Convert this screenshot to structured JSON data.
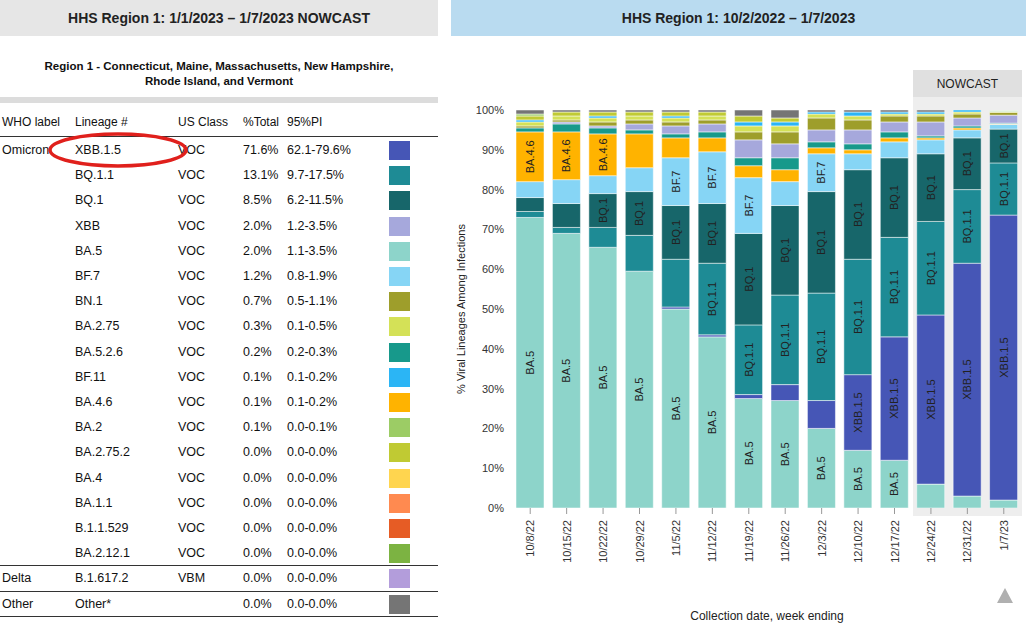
{
  "left_header": "HHS Region 1: 1/1/2023 – 1/7/2023 NOWCAST",
  "right_header": "HHS Region 1: 10/2/2022 – 1/7/2023",
  "subtitle_lines": [
    "Region 1 - Connecticut, Maine, Massachusetts, New Hampshire,",
    "Rhode Island, and Vermont"
  ],
  "table": {
    "columns": [
      "WHO label",
      "Lineage #",
      "US Class",
      "%Total",
      "95%PI"
    ],
    "rows": [
      [
        "Omicron",
        "XBB.1.5",
        "VOC",
        "71.6%",
        "62.1-79.6%",
        "#4656b6"
      ],
      [
        null,
        "BQ.1.1",
        "VOC",
        "13.1%",
        "9.7-17.5%",
        "#1e8b95"
      ],
      [
        null,
        "BQ.1",
        "VOC",
        "8.5%",
        "6.2-11.5%",
        "#17666a"
      ],
      [
        null,
        "XBB",
        "VOC",
        "2.0%",
        "1.2-3.5%",
        "#a6a8dc"
      ],
      [
        null,
        "BA.5",
        "VOC",
        "2.0%",
        "1.1-3.5%",
        "#8dd4ca"
      ],
      [
        null,
        "BF.7",
        "VOC",
        "1.2%",
        "0.8-1.9%",
        "#86d5f5"
      ],
      [
        null,
        "BN.1",
        "VOC",
        "0.7%",
        "0.5-1.1%",
        "#9e9e2b"
      ],
      [
        null,
        "BA.2.75",
        "VOC",
        "0.3%",
        "0.1-0.5%",
        "#d4e157"
      ],
      [
        null,
        "BA.5.2.6",
        "VOC",
        "0.2%",
        "0.2-0.3%",
        "#17998b"
      ],
      [
        null,
        "BF.11",
        "VOC",
        "0.1%",
        "0.1-0.2%",
        "#2bb5f5"
      ],
      [
        null,
        "BA.4.6",
        "VOC",
        "0.1%",
        "0.1-0.2%",
        "#ffb300"
      ],
      [
        null,
        "BA.2",
        "VOC",
        "0.1%",
        "0.0-0.1%",
        "#9ccc65"
      ],
      [
        null,
        "BA.2.75.2",
        "VOC",
        "0.0%",
        "0.0-0.0%",
        "#c0ca33"
      ],
      [
        null,
        "BA.4",
        "VOC",
        "0.0%",
        "0.0-0.0%",
        "#ffd54f"
      ],
      [
        null,
        "BA.1.1",
        "VOC",
        "0.0%",
        "0.0-0.0%",
        "#ff8a50"
      ],
      [
        null,
        "B.1.1.529",
        "VOC",
        "0.0%",
        "0.0-0.0%",
        "#e65c25"
      ],
      [
        null,
        "BA.2.12.1",
        "VOC",
        "0.0%",
        "0.0-0.0%",
        "#7cb342"
      ],
      [
        "Delta",
        "B.1.617.2",
        "VBM",
        "0.0%",
        "0.0-0.0%",
        "#b39ddb"
      ],
      [
        "Other",
        "Other*",
        null,
        "0.0%",
        "0.0-0.0%",
        "#757575"
      ]
    ]
  },
  "chart_data": {
    "type": "bar",
    "stacked": true,
    "grid": false,
    "ylabel": "% Viral Lineages Among Infections",
    "xlabel": "Collection date, week ending",
    "categories": [
      "10/8/22",
      "10/15/22",
      "10/22/22",
      "10/29/22",
      "11/5/22",
      "11/12/22",
      "11/19/22",
      "11/26/22",
      "12/3/22",
      "12/10/22",
      "12/17/22",
      "12/24/22",
      "12/31/22",
      "1/7/23"
    ],
    "ylim": [
      0,
      100
    ],
    "yticks": [
      {
        "value": 0,
        "label": "0%"
      },
      {
        "value": 10,
        "label": "10%"
      },
      {
        "value": 20,
        "label": "20%"
      },
      {
        "value": 30,
        "label": "30%"
      },
      {
        "value": 40,
        "label": "40%"
      },
      {
        "value": 50,
        "label": "50%"
      },
      {
        "value": 60,
        "label": "60%"
      },
      {
        "value": 70,
        "label": "70%"
      },
      {
        "value": 80,
        "label": "80%"
      },
      {
        "value": 90,
        "label": "90%"
      },
      {
        "value": 100,
        "label": "100%"
      }
    ],
    "series": [
      {
        "name": "BA.5",
        "color": "#8dd4ca",
        "values": [
          73,
          69,
          65.5,
          59.5,
          50,
          43,
          27.5,
          27,
          20,
          14.5,
          12,
          6,
          3,
          2
        ]
      },
      {
        "name": "XBB.1.5",
        "color": "#4656b6",
        "values": [
          0,
          0,
          0,
          0,
          0.5,
          0.5,
          1,
          4,
          7,
          19,
          31,
          42.5,
          58.5,
          71.6
        ]
      },
      {
        "name": "BQ.1.1",
        "color": "#1e8b95",
        "values": [
          1.5,
          1.5,
          5,
          9,
          12,
          18,
          17.5,
          22.5,
          27,
          29,
          25,
          23.5,
          18.5,
          13.1
        ]
      },
      {
        "name": "BQ.1",
        "color": "#17666a",
        "values": [
          3.5,
          6,
          8.5,
          11,
          13.5,
          15,
          23,
          22.5,
          25.5,
          22.5,
          20,
          17,
          13,
          8.5
        ]
      },
      {
        "name": "BF.7",
        "color": "#86d5f5",
        "values": [
          4,
          6,
          4.5,
          6,
          12,
          13,
          14,
          6,
          9.5,
          4,
          4,
          3.5,
          2,
          1.2
        ]
      },
      {
        "name": "BA.4.6",
        "color": "#ffb300",
        "values": [
          12.5,
          12,
          10.5,
          8.5,
          5,
          3.5,
          3,
          3,
          1.5,
          1,
          1,
          0.5,
          0.5,
          0.1
        ]
      },
      {
        "name": "BA.5.2.6",
        "color": "#17998b",
        "values": [
          1,
          2,
          1.5,
          1,
          1,
          1.5,
          2,
          3,
          1.5,
          1.5,
          1.5,
          0.5,
          0.5,
          0.2
        ]
      },
      {
        "name": "XBB",
        "color": "#a6a8dc",
        "values": [
          0,
          0.5,
          0.5,
          1.5,
          2,
          2,
          4.5,
          3.5,
          3,
          3.5,
          2.5,
          3.5,
          2,
          2
        ]
      },
      {
        "name": "BN.1",
        "color": "#9e9e2b",
        "values": [
          0.5,
          0.5,
          1,
          1,
          1,
          1,
          2,
          3,
          3,
          2.5,
          1.5,
          1.5,
          1,
          0.7
        ]
      },
      {
        "name": "BA.2.75",
        "color": "#d4e157",
        "values": [
          1,
          1,
          1,
          1,
          1,
          1,
          1.5,
          1.5,
          1,
          1,
          0.5,
          0.5,
          0.5,
          0.3
        ]
      },
      {
        "name": "BF.11",
        "color": "#2bb5f5",
        "values": [
          0.5,
          0,
          0.5,
          0,
          0.5,
          0,
          1,
          1,
          0.5,
          1,
          0.5,
          0.5,
          0.5,
          0.1
        ]
      },
      {
        "name": "BA.2.75.2",
        "color": "#c0ca33",
        "values": [
          1,
          1,
          1,
          1,
          1,
          1,
          1.5,
          1,
          0,
          0,
          0,
          0,
          0,
          0
        ]
      },
      {
        "name": "BA.2",
        "color": "#9ccc65",
        "values": [
          0.5,
          0,
          0,
          0,
          0,
          0,
          0,
          0,
          0,
          0,
          0,
          0,
          0,
          0.1
        ]
      },
      {
        "name": "Other",
        "color": "#757575",
        "values": [
          1,
          0.5,
          0.5,
          0.5,
          0.5,
          0.5,
          1.5,
          2,
          0.5,
          0.5,
          0.5,
          0.5,
          0,
          0
        ]
      }
    ],
    "annotations": [
      {
        "category": "10/8/22",
        "series": "BA.5",
        "text": "BA.5"
      },
      {
        "category": "10/8/22",
        "series": "BA.4.6",
        "text": "BA.4.6"
      },
      {
        "category": "10/15/22",
        "series": "BA.5",
        "text": "BA.5"
      },
      {
        "category": "10/15/22",
        "series": "BA.4.6",
        "text": "BA.4.6"
      },
      {
        "category": "10/22/22",
        "series": "BA.5",
        "text": "BA.5"
      },
      {
        "category": "10/22/22",
        "series": "BQ.1",
        "text": "BQ.1"
      },
      {
        "category": "10/22/22",
        "series": "BA.4.6",
        "text": "BA.4.6"
      },
      {
        "category": "10/29/22",
        "series": "BA.5",
        "text": "BA.5"
      },
      {
        "category": "10/29/22",
        "series": "BQ.1",
        "text": "BQ.1"
      },
      {
        "category": "11/5/22",
        "series": "BA.5",
        "text": "BA.5"
      },
      {
        "category": "11/5/22",
        "series": "BQ.1",
        "text": "BQ.1"
      },
      {
        "category": "11/5/22",
        "series": "BF.7",
        "text": "BF.7"
      },
      {
        "category": "11/12/22",
        "series": "BA.5",
        "text": "BA.5"
      },
      {
        "category": "11/12/22",
        "series": "BQ.1.1",
        "text": "BQ.1.1"
      },
      {
        "category": "11/12/22",
        "series": "BQ.1",
        "text": "BQ.1"
      },
      {
        "category": "11/12/22",
        "series": "BF.7",
        "text": "BF.7"
      },
      {
        "category": "11/19/22",
        "series": "BA.5",
        "text": "BA.5"
      },
      {
        "category": "11/19/22",
        "series": "BQ.1.1",
        "text": "BQ.1.1"
      },
      {
        "category": "11/19/22",
        "series": "BQ.1",
        "text": "BQ.1"
      },
      {
        "category": "11/19/22",
        "series": "BF.7",
        "text": "BF.7"
      },
      {
        "category": "11/26/22",
        "series": "BA.5",
        "text": "BA.5"
      },
      {
        "category": "11/26/22",
        "series": "BQ.1.1",
        "text": "BQ.1.1"
      },
      {
        "category": "11/26/22",
        "series": "BQ.1",
        "text": "BQ.1"
      },
      {
        "category": "12/3/22",
        "series": "BA.5",
        "text": "BA.5"
      },
      {
        "category": "12/3/22",
        "series": "BQ.1.1",
        "text": "BQ.1.1"
      },
      {
        "category": "12/3/22",
        "series": "BQ.1",
        "text": "BQ.1"
      },
      {
        "category": "12/3/22",
        "series": "BF.7",
        "text": "BF.7"
      },
      {
        "category": "12/10/22",
        "series": "BA.5",
        "text": "BA.5"
      },
      {
        "category": "12/10/22",
        "series": "XBB.1.5",
        "text": "XBB.1.5"
      },
      {
        "category": "12/10/22",
        "series": "BQ.1.1",
        "text": "BQ.1.1"
      },
      {
        "category": "12/10/22",
        "series": "BQ.1",
        "text": "BQ.1"
      },
      {
        "category": "12/17/22",
        "series": "BA.5",
        "text": "BA.5"
      },
      {
        "category": "12/17/22",
        "series": "XBB.1.5",
        "text": "XBB.1.5"
      },
      {
        "category": "12/17/22",
        "series": "BQ.1.1",
        "text": "BQ.1.1"
      },
      {
        "category": "12/17/22",
        "series": "BQ.1",
        "text": "BQ.1"
      },
      {
        "category": "12/24/22",
        "series": "XBB.1.5",
        "text": "XBB.1.5"
      },
      {
        "category": "12/24/22",
        "series": "BQ.1.1",
        "text": "BQ.1.1"
      },
      {
        "category": "12/24/22",
        "series": "BQ.1",
        "text": "BQ.1"
      },
      {
        "category": "12/31/22",
        "series": "XBB.1.5",
        "text": "XBB.1.5"
      },
      {
        "category": "12/31/22",
        "series": "BQ.1.1",
        "text": "BQ.1.1"
      },
      {
        "category": "12/31/22",
        "series": "BQ.1",
        "text": "BQ.1"
      },
      {
        "category": "1/7/23",
        "series": "XBB.1.5",
        "text": "XBB.1.5"
      },
      {
        "category": "1/7/23",
        "series": "BQ.1.1",
        "text": "BQ.1.1"
      },
      {
        "category": "1/7/23",
        "series": "BQ.1",
        "text": "BQ.1"
      }
    ],
    "highlight": {
      "text": "NOWCAST",
      "categories": [
        "12/24/22",
        "12/31/22",
        "1/7/23"
      ]
    }
  }
}
